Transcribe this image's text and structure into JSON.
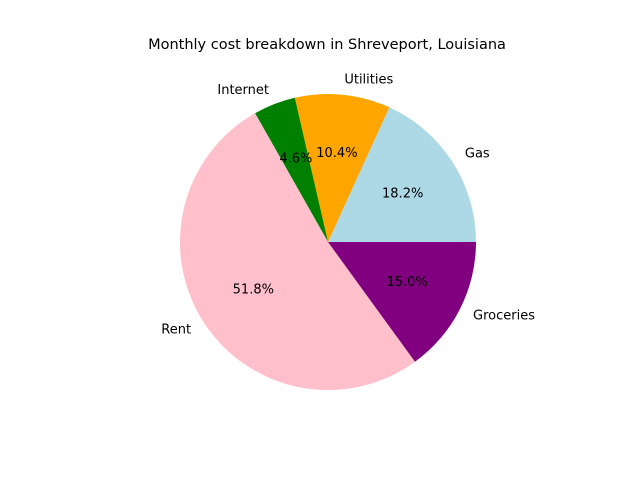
{
  "chart_data": {
    "type": "pie",
    "title": "Monthly cost breakdown in Shreveport, Louisiana",
    "start_angle_deg": 0,
    "direction": "counterclockwise",
    "slices": [
      {
        "label": "Gas",
        "percent": 18.2,
        "percent_label": "18.2%",
        "color": "#ADD8E6"
      },
      {
        "label": "Utilities",
        "percent": 10.4,
        "percent_label": "10.4%",
        "color": "#FFA500"
      },
      {
        "label": "Internet",
        "percent": 4.6,
        "percent_label": "4.6%",
        "color": "#008000"
      },
      {
        "label": "Rent",
        "percent": 51.8,
        "percent_label": "51.8%",
        "color": "#FFC0CB"
      },
      {
        "label": "Groceries",
        "percent": 15.0,
        "percent_label": "15.0%",
        "color": "#800080"
      }
    ]
  }
}
